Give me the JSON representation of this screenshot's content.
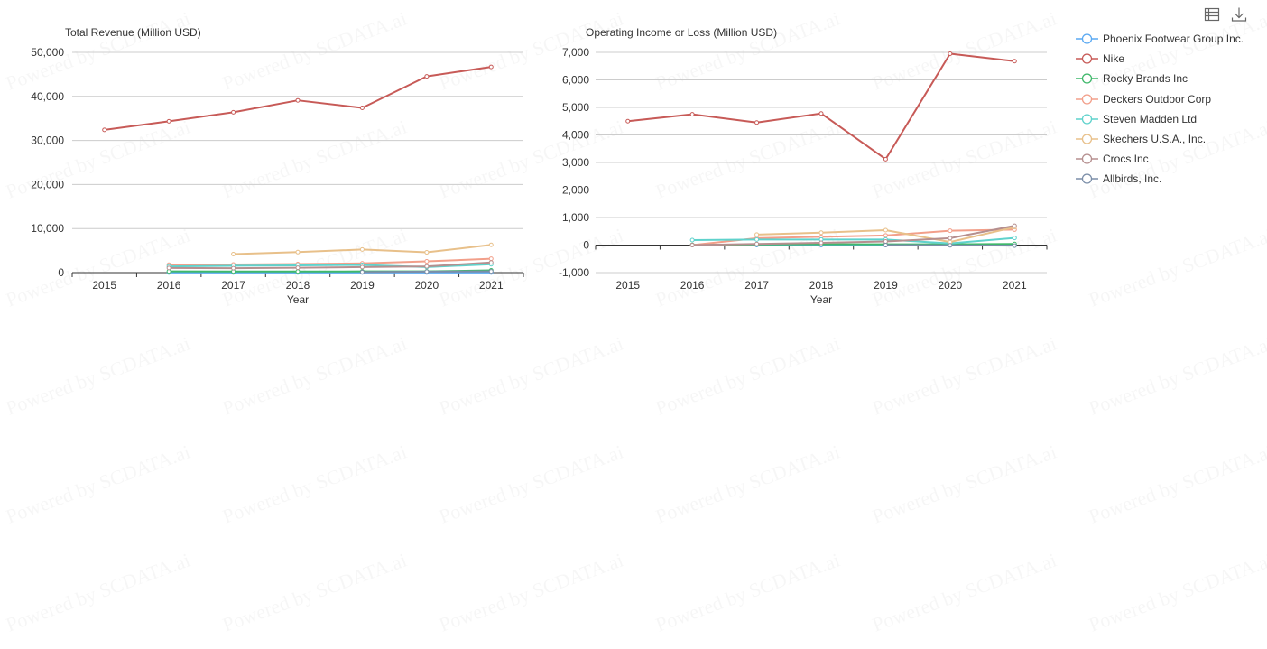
{
  "series_styles": [
    {
      "name": "Phoenix Footwear Group Inc.",
      "color": "#5470c6"
    },
    {
      "name": "Nike",
      "color": "#c23531"
    },
    {
      "name": "Rocky Brands Inc",
      "color": "#2f4554"
    },
    {
      "name": "Deckers Outdoor Corp",
      "color": "#61a0a8"
    },
    {
      "name": "Steven Madden Ltd",
      "color": "#d48265"
    },
    {
      "name": "Skechers U.S.A., Inc.",
      "color": "#91c7ae"
    },
    {
      "name": "Crocs Inc",
      "color": "#749f83"
    },
    {
      "name": "Allbirds, Inc.",
      "color": "#ca8622"
    }
  ],
  "legend_colors": [
    "#5aa9f2",
    "#c75a57",
    "#3fb86b",
    "#f29f8a",
    "#5fd2cc",
    "#e8c08a",
    "#b58f8f",
    "#7b8ea8"
  ],
  "toolbox": {
    "icons": [
      "data-view-icon",
      "download-icon"
    ]
  },
  "chart_data": [
    {
      "type": "line",
      "title": "Total Revenue (Million USD)",
      "xlabel": "Year",
      "ylabel": "",
      "x": [
        "2015",
        "2016",
        "2017",
        "2018",
        "2019",
        "2020",
        "2021"
      ],
      "ylim": [
        0,
        50000
      ],
      "yticks": [
        0,
        10000,
        20000,
        30000,
        40000,
        50000
      ],
      "ytick_labels": [
        "0",
        "10,000",
        "20,000",
        "30,000",
        "40,000",
        "50,000"
      ],
      "grid": true,
      "series": [
        {
          "name": "Phoenix Footwear Group Inc.",
          "values": [
            null,
            20,
            20,
            20,
            20,
            20,
            20
          ]
        },
        {
          "name": "Nike",
          "values": [
            32400,
            34350,
            36400,
            39100,
            37400,
            44550,
            46700
          ]
        },
        {
          "name": "Rocky Brands Inc",
          "values": [
            null,
            280,
            260,
            250,
            270,
            280,
            510
          ]
        },
        {
          "name": "Deckers Outdoor Corp",
          "values": [
            null,
            1800,
            1850,
            1950,
            2100,
            2550,
            3150
          ]
        },
        {
          "name": "Steven Madden Ltd",
          "values": [
            null,
            1400,
            1550,
            1650,
            1750,
            1250,
            1900
          ]
        },
        {
          "name": "Skechers U.S.A., Inc.",
          "values": [
            null,
            null,
            4200,
            4650,
            5250,
            4600,
            6300
          ]
        },
        {
          "name": "Crocs Inc",
          "values": [
            null,
            1050,
            1000,
            1100,
            1250,
            1400,
            2300
          ]
        },
        {
          "name": "Allbirds, Inc.",
          "values": [
            null,
            null,
            null,
            null,
            130,
            220,
            280
          ]
        }
      ]
    },
    {
      "type": "line",
      "title": "Operating Income or Loss (Million USD)",
      "xlabel": "Year",
      "ylabel": "",
      "x": [
        "2015",
        "2016",
        "2017",
        "2018",
        "2019",
        "2020",
        "2021"
      ],
      "ylim": [
        -1000,
        7000
      ],
      "yticks": [
        -1000,
        0,
        1000,
        2000,
        3000,
        4000,
        5000,
        6000,
        7000
      ],
      "ytick_labels": [
        "-1,000",
        "0",
        "1,000",
        "2,000",
        "3,000",
        "4,000",
        "5,000",
        "6,000",
        "7,000"
      ],
      "grid": true,
      "series": [
        {
          "name": "Phoenix Footwear Group Inc.",
          "values": [
            null,
            0,
            0,
            0,
            0,
            0,
            0
          ]
        },
        {
          "name": "Nike",
          "values": [
            4500,
            4750,
            4450,
            4780,
            3120,
            6950,
            6680
          ]
        },
        {
          "name": "Rocky Brands Inc",
          "values": [
            null,
            10,
            20,
            30,
            30,
            30,
            40
          ]
        },
        {
          "name": "Deckers Outdoor Corp",
          "values": [
            null,
            0,
            250,
            300,
            350,
            520,
            560
          ]
        },
        {
          "name": "Steven Madden Ltd",
          "values": [
            null,
            180,
            200,
            200,
            200,
            60,
            260
          ]
        },
        {
          "name": "Skechers U.S.A., Inc.",
          "values": [
            null,
            null,
            380,
            450,
            540,
            110,
            650
          ]
        },
        {
          "name": "Crocs Inc",
          "values": [
            null,
            0,
            40,
            80,
            130,
            250,
            700
          ]
        },
        {
          "name": "Allbirds, Inc.",
          "values": [
            null,
            null,
            null,
            null,
            0,
            -10,
            -20
          ]
        }
      ]
    }
  ]
}
